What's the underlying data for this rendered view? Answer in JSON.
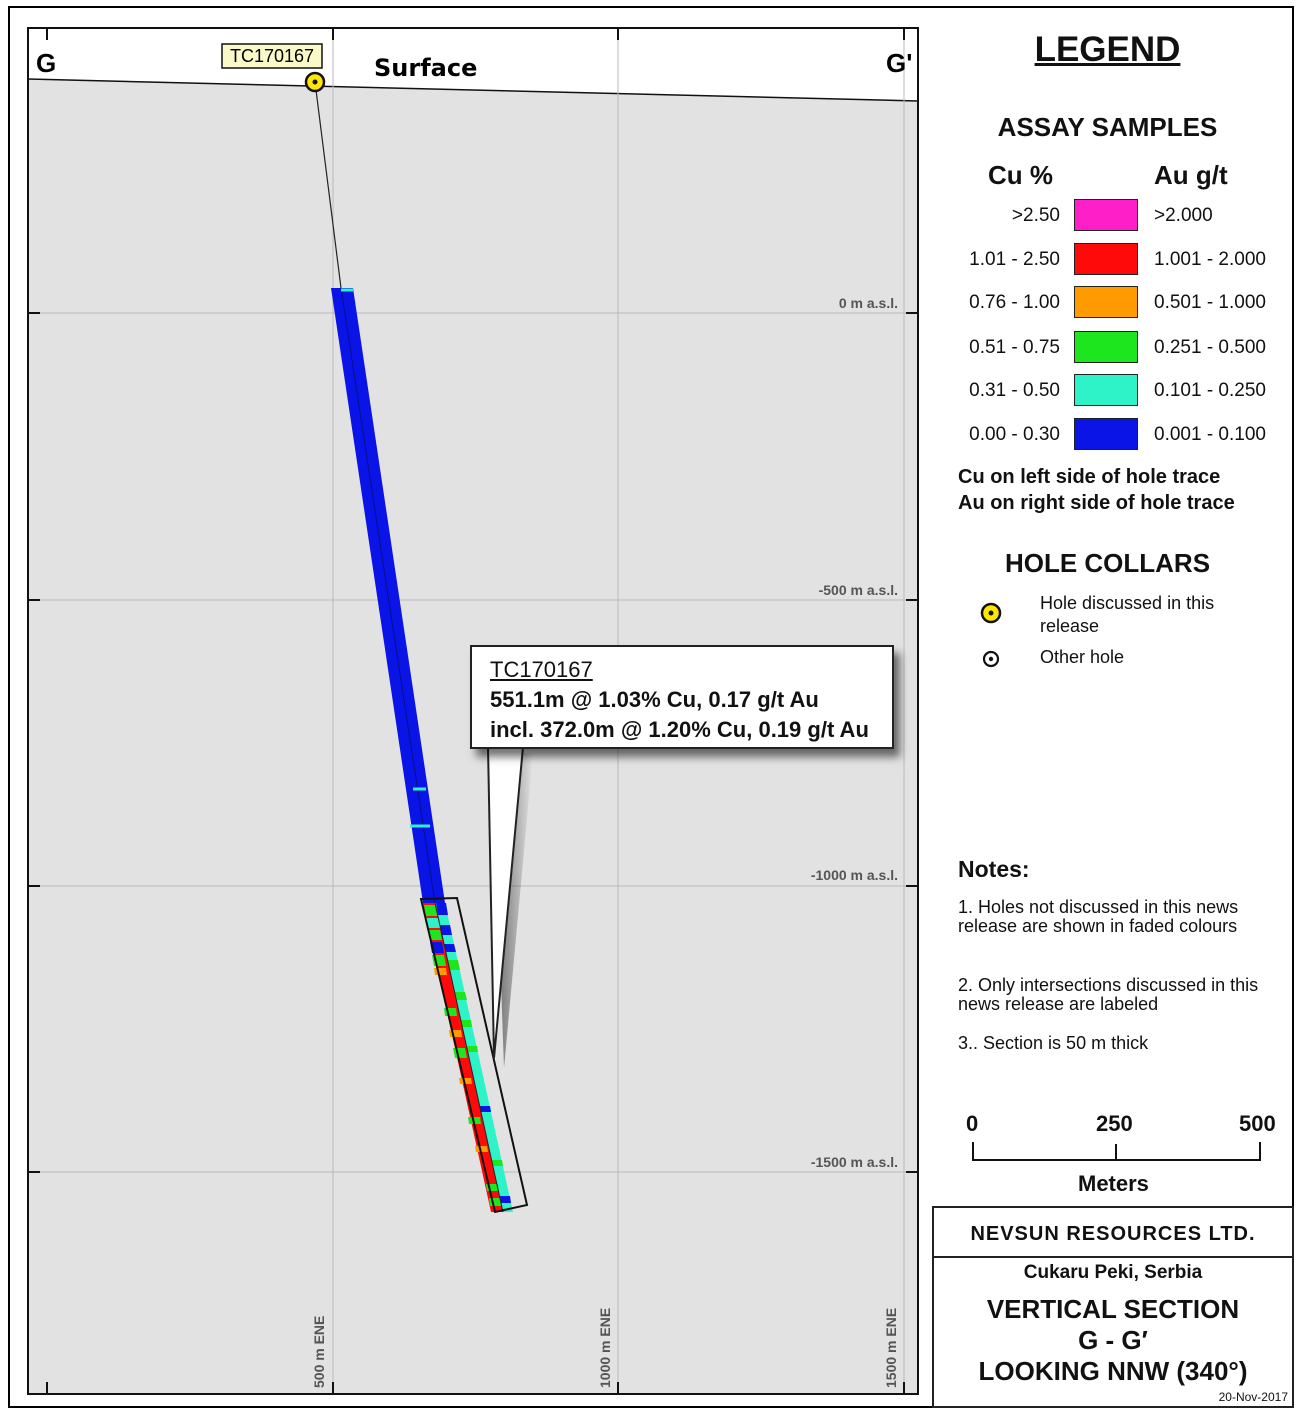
{
  "section": {
    "end_left": "G",
    "end_right": "G'",
    "surface_label": "Surface",
    "collar_tag": "TC170167",
    "elevation_labels": [
      "0 m a.s.l.",
      "-500 m a.s.l.",
      "-1000 m a.s.l.",
      "-1500 m a.s.l."
    ],
    "easting_labels": [
      "500 m ENE",
      "1000 m ENE",
      "1500 m ENE"
    ]
  },
  "callout": {
    "hole": "TC170167",
    "line1": "551.1m @ 1.03% Cu, 0.17 g/t Au",
    "line2": "incl. 372.0m @ 1.20% Cu, 0.19 g/t Au"
  },
  "legend": {
    "title": "LEGEND",
    "assay_title": "ASSAY SAMPLES",
    "cu_header": "Cu %",
    "au_header": "Au g/t",
    "classes": [
      {
        "cu": ">2.50",
        "au": ">2.000",
        "color": "#ff1fc8"
      },
      {
        "cu": "1.01 - 2.50",
        "au": "1.001 - 2.000",
        "color": "#ff0a0a"
      },
      {
        "cu": "0.76 - 1.00",
        "au": "0.501 - 1.000",
        "color": "#ff9a00"
      },
      {
        "cu": "0.51 - 0.75",
        "au": "0.251 - 0.500",
        "color": "#1ee61e"
      },
      {
        "cu": "0.31 - 0.50",
        "au": "0.101 - 0.250",
        "color": "#2ef2c8"
      },
      {
        "cu": "0.00 - 0.30",
        "au": "0.001 - 0.100",
        "color": "#0a14e6"
      }
    ],
    "side_note_1": "Cu on left side of hole trace",
    "side_note_2": "Au on right side of hole trace",
    "collars_title": "HOLE COLLARS",
    "collar_discussed": "Hole discussed in this release",
    "collar_other": "Other hole"
  },
  "notes": {
    "title": "Notes:",
    "items": [
      "1. Holes not discussed in this news release are shown in faded colours",
      "2. Only intersections discussed in this news release are labeled",
      "3.. Section is 50 m thick"
    ]
  },
  "scale_bar": {
    "ticks": [
      "0",
      "250",
      "500"
    ],
    "unit": "Meters"
  },
  "title_block": {
    "company": "NEVSUN RESOURCES LTD.",
    "project": "Cukaru Peki, Serbia",
    "title_1": "VERTICAL SECTION",
    "title_2": "G - G′",
    "title_3": "LOOKING NNW (340°)",
    "date": "20-Nov-2017"
  },
  "colors": {
    "ground": "#e2e2e2",
    "collar_yellow": "#ffe600",
    "tag_bg": "#fafac8"
  }
}
